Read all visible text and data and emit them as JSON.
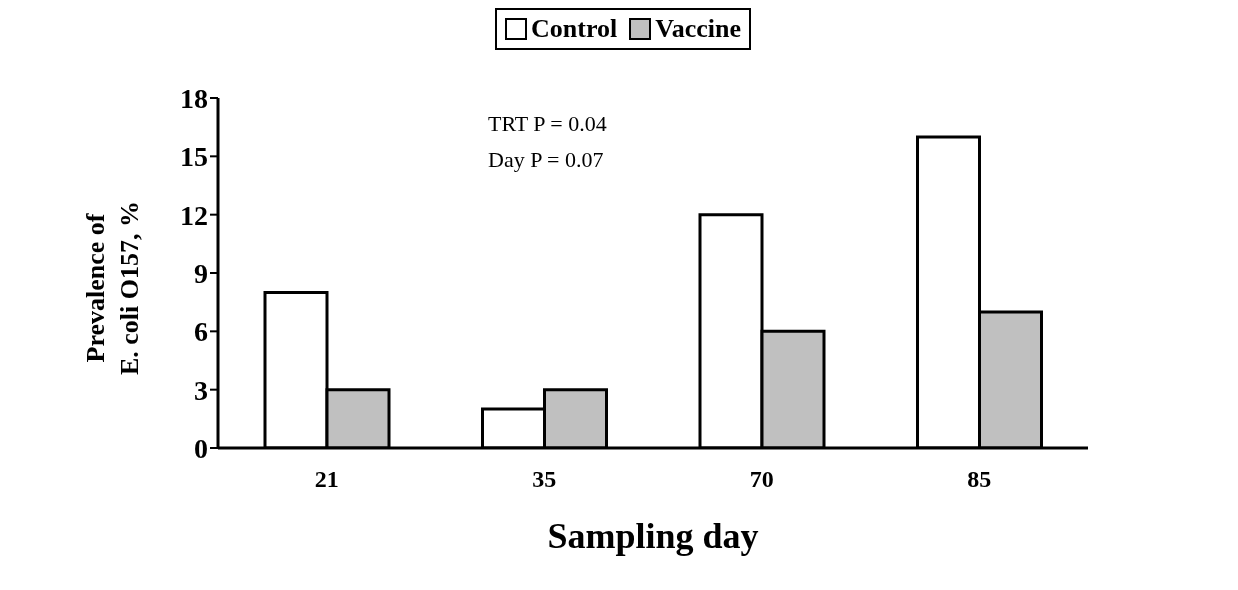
{
  "chart_data": {
    "type": "bar",
    "xlabel": "Sampling day",
    "ylabel": "Prevalence of E. coli O157, %",
    "categories": [
      "21",
      "35",
      "70",
      "85"
    ],
    "series": [
      {
        "name": "Control",
        "color": "#ffffff",
        "values": [
          8,
          2,
          12,
          16
        ]
      },
      {
        "name": "Vaccine",
        "color": "#c0c0c0",
        "values": [
          3,
          3,
          6,
          7
        ]
      }
    ],
    "ylim": [
      0,
      18
    ],
    "yticks": [
      0,
      3,
      6,
      9,
      12,
      15,
      18
    ],
    "grid": false,
    "legend": "top",
    "annotations": [
      "TRT P = 0.04",
      "Day P = 0.07"
    ]
  }
}
